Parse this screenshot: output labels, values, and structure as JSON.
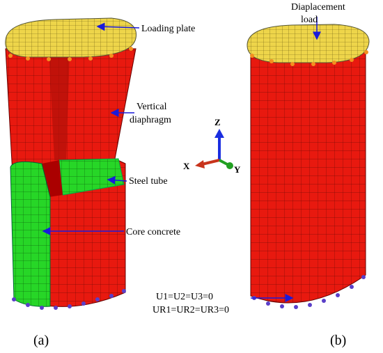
{
  "panel_a": {
    "label": "(a)",
    "loading_plate": "Loading plate",
    "vertical_diaphragm": [
      "Vertical",
      "diaphragm"
    ],
    "steel_tube": "Steel tube",
    "core_concrete": "Core concrete"
  },
  "panel_b": {
    "label": "(b)",
    "displacement_load": [
      "Diaplacement",
      "load"
    ],
    "boundary_condition": [
      "U1=U2=U3=0",
      "UR1=UR2=UR3=0"
    ]
  },
  "axes": {
    "z": "Z",
    "x": "X",
    "y": "Y"
  }
}
